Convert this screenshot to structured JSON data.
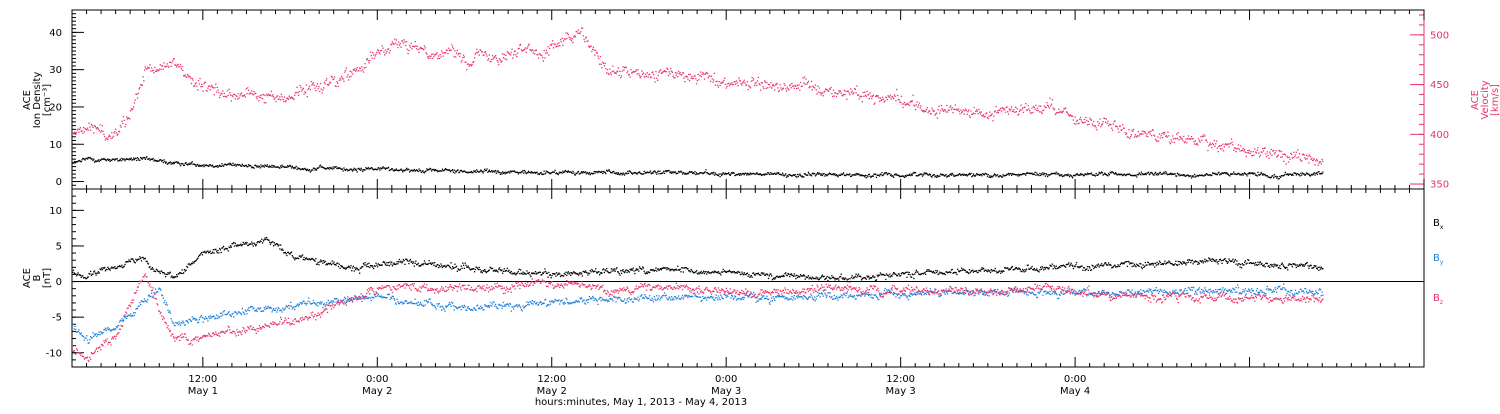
{
  "chart_data": [
    {
      "type": "scatter",
      "panel": "top",
      "left_axis": {
        "label_lines": [
          "ACE",
          "Ion Density",
          "[cm⁻³]"
        ],
        "ylim": [
          -2,
          46
        ],
        "ticks": [
          0,
          10,
          20,
          30,
          40
        ]
      },
      "right_axis": {
        "label_lines": [
          "ACE",
          "Velocity",
          "[km/s]"
        ],
        "ylim": [
          345,
          525
        ],
        "ticks": [
          350,
          400,
          450,
          500
        ],
        "color": "#e8336b"
      },
      "series": [
        {
          "color": "#000000",
          "axis": "left",
          "keypoints_hours": [
            0,
            4,
            8,
            10,
            13,
            17,
            22,
            25,
            30,
            34,
            40,
            46,
            52,
            58,
            64,
            70,
            76,
            82,
            89
          ],
          "keypoints_values": [
            3,
            6,
            6,
            5,
            4.5,
            4,
            3.5,
            3.5,
            3,
            2.5,
            2.5,
            2.5,
            2,
            2,
            2,
            2,
            2,
            2,
            2
          ]
        },
        {
          "color": "#e8336b",
          "axis": "right",
          "keypoints_hours": [
            0,
            2,
            4,
            5,
            6,
            7,
            8,
            10,
            12,
            15,
            17,
            19,
            23,
            25,
            30,
            35,
            38,
            40,
            44,
            48,
            52,
            56,
            60,
            62,
            66,
            70,
            72,
            76,
            80,
            84,
            86,
            89
          ],
          "keypoints_values": [
            400,
            395,
            410,
            405,
            400,
            420,
            460,
            475,
            445,
            440,
            435,
            445,
            470,
            490,
            480,
            485,
            500,
            460,
            460,
            455,
            450,
            445,
            435,
            425,
            420,
            430,
            415,
            405,
            395,
            385,
            380,
            375
          ]
        }
      ]
    },
    {
      "type": "scatter",
      "panel": "bottom",
      "left_axis": {
        "label_lines": [
          "ACE",
          "B",
          "[nT]"
        ],
        "ylim": [
          -12,
          13
        ],
        "ticks": [
          -10,
          -5,
          0,
          5,
          10
        ]
      },
      "zero_line": true,
      "series": [
        {
          "name": "B",
          "subscript": "x",
          "color": "#000000",
          "keypoints_hours": [
            0,
            2,
            4,
            6,
            8,
            9,
            10,
            12,
            14,
            16,
            18,
            20,
            22,
            24,
            26,
            30,
            36,
            40,
            44,
            50,
            56,
            62,
            70,
            76,
            82,
            89
          ],
          "keypoints_values": [
            3,
            2,
            1,
            2.5,
            3,
            1,
            0.5,
            4,
            5,
            6,
            4,
            3,
            2,
            2.5,
            3,
            2,
            1,
            1.5,
            2,
            1,
            0.5,
            1.5,
            2,
            2.5,
            3,
            2
          ]
        },
        {
          "name": "B",
          "subscript": "y",
          "color": "#1f7fd9",
          "keypoints_hours": [
            0,
            2,
            4,
            6,
            8,
            9,
            10,
            12,
            14,
            16,
            18,
            20,
            22,
            24,
            26,
            30,
            36,
            40,
            44,
            50,
            56,
            62,
            70,
            76,
            82,
            89
          ],
          "keypoints_values": [
            -6,
            -4,
            -8,
            -6,
            -3,
            -1,
            -6,
            -5,
            -4.5,
            -4,
            -3.5,
            -3,
            -2.5,
            -2,
            -3,
            -3.5,
            -3,
            -2.5,
            -2,
            -2,
            -2,
            -1.5,
            -1.5,
            -1.5,
            -1,
            -1.5
          ]
        },
        {
          "name": "B",
          "subscript": "z",
          "color": "#e8336b",
          "keypoints_hours": [
            0,
            2,
            4,
            6,
            8,
            9,
            10,
            12,
            14,
            16,
            18,
            20,
            22,
            24,
            26,
            30,
            36,
            40,
            44,
            50,
            56,
            62,
            70,
            76,
            82,
            89
          ],
          "keypoints_values": [
            -3,
            -9,
            -10,
            -8,
            1,
            -4,
            -8,
            -7.5,
            -7,
            -6.5,
            -5.5,
            -4,
            -2.5,
            -1,
            -0.5,
            -1,
            0,
            -1,
            -1,
            -1.5,
            -1,
            -1.5,
            -1,
            -2,
            -2,
            -2.5
          ]
        }
      ]
    }
  ],
  "x_axis": {
    "ticks": [
      {
        "hour": 12,
        "time": "12:00",
        "day": "May 1"
      },
      {
        "hour": 24,
        "time": "0:00",
        "day": "May 2"
      },
      {
        "hour": 36,
        "time": "12:00",
        "day": "May 2"
      },
      {
        "hour": 48,
        "time": "0:00",
        "day": "May 3"
      },
      {
        "hour": 60,
        "time": "12:00",
        "day": "May 3"
      },
      {
        "hour": 72,
        "time": "0:00",
        "day": "May 4"
      }
    ],
    "range_hours": [
      3,
      96
    ],
    "data_end_hour": 89,
    "label": "hours:minutes, May  1, 2013 - May  4, 2013"
  },
  "legend": {
    "placement": "right"
  }
}
